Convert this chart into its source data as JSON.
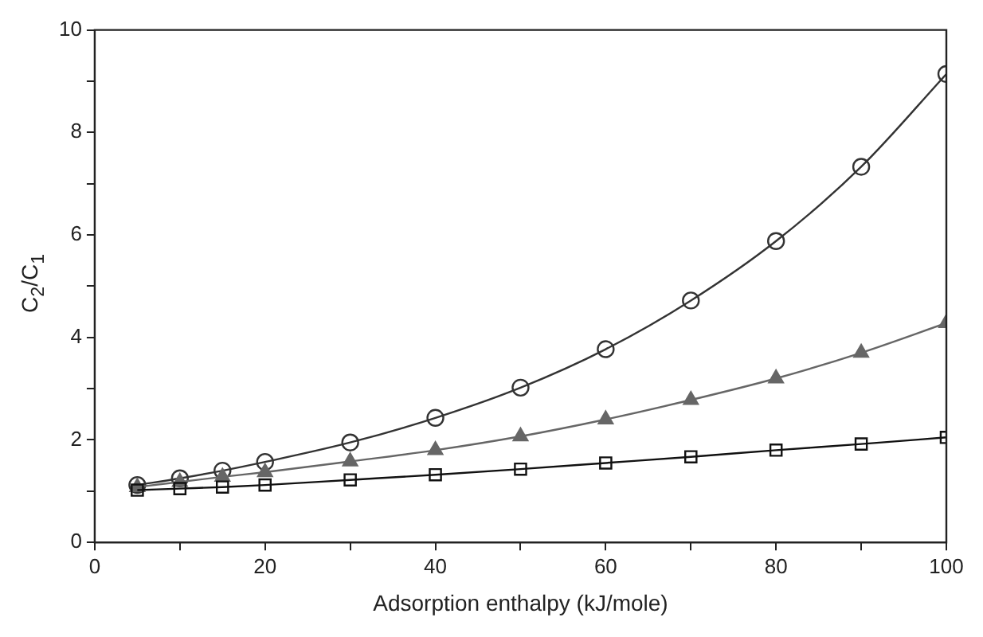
{
  "chart_data": {
    "type": "line",
    "xlabel": "Adsorption enthalpy (kJ/mole)",
    "ylabel": "C$_{2}$/C$_{1}$",
    "x": [
      5,
      10,
      15,
      20,
      30,
      40,
      50,
      60,
      70,
      80,
      90,
      100
    ],
    "series": [
      {
        "color": "#333333",
        "marker": "circle",
        "values": [
          1.12,
          1.25,
          1.4,
          1.57,
          1.95,
          2.43,
          3.02,
          3.77,
          4.72,
          5.88,
          7.33,
          9.14
        ]
      },
      {
        "color": "#666666",
        "marker": "triangle",
        "values": [
          1.08,
          1.18,
          1.28,
          1.37,
          1.58,
          1.8,
          2.07,
          2.4,
          2.78,
          3.2,
          3.7,
          4.28
        ]
      },
      {
        "color": "#111111",
        "marker": "square",
        "values": [
          1.02,
          1.05,
          1.08,
          1.12,
          1.22,
          1.32,
          1.43,
          1.55,
          1.67,
          1.8,
          1.92,
          2.05
        ]
      }
    ],
    "xlim": [
      0,
      100
    ],
    "xticks": [
      0,
      {
        "value": 10,
        "label": null
      },
      20,
      {
        "value": 30,
        "label": null
      },
      40,
      {
        "value": 50,
        "label": null
      },
      60,
      {
        "value": 70,
        "label": null
      },
      80,
      {
        "value": 90,
        "label": null
      },
      100
    ],
    "ylim": [
      0,
      10
    ],
    "yticks": [
      0,
      {
        "value": 1,
        "label": null
      },
      2,
      {
        "value": 3,
        "label": null
      },
      4,
      {
        "value": 5,
        "label": null
      },
      6,
      {
        "value": 7,
        "label": null
      },
      8,
      {
        "value": 9,
        "label": null
      },
      10
    ],
    "grid": false,
    "legend": false,
    "line_style": "solid"
  }
}
